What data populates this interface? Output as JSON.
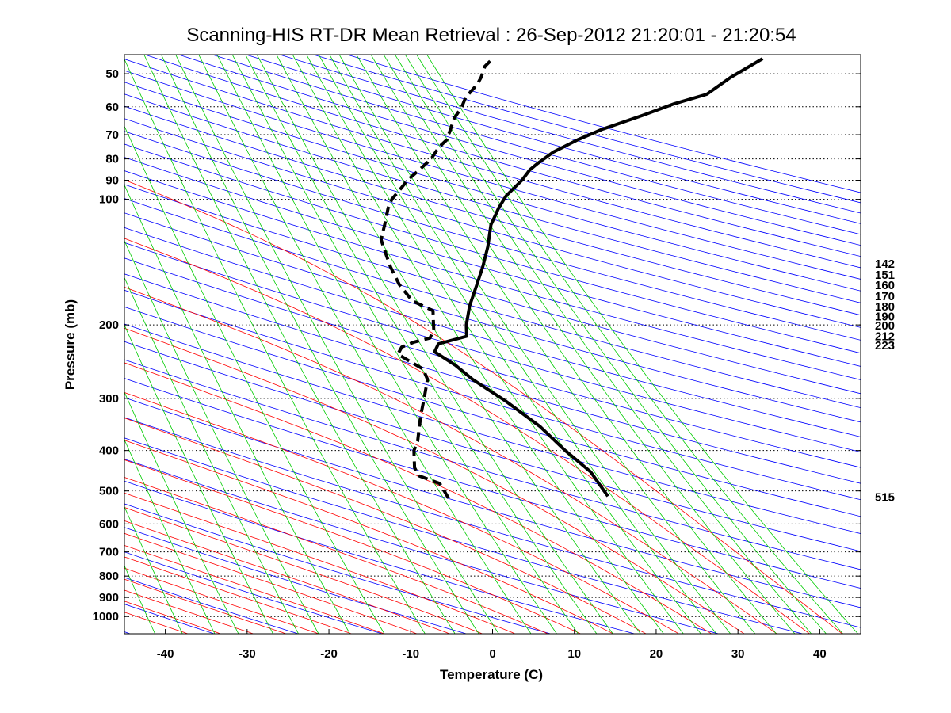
{
  "chart_data": {
    "type": "line",
    "title": "Scanning-HIS RT-DR Mean Retrieval : 26-Sep-2012 21:20:01 - 21:20:54",
    "xlabel": "Temperature (C)",
    "ylabel": "Pressure (mb)",
    "xlim": [
      -45,
      45
    ],
    "ylim": [
      1100,
      45
    ],
    "y_scale": "log",
    "x_ticks": [
      "-40",
      "-30",
      "-20",
      "-10",
      "0",
      "10",
      "20",
      "30",
      "40"
    ],
    "y_ticks": [
      "50",
      "60",
      "70",
      "80",
      "90",
      "100",
      "200",
      "300",
      "400",
      "500",
      "600",
      "700",
      "800",
      "900",
      "1000"
    ],
    "grid": "horizontal dotted lines at pressure ticks",
    "background_lines": {
      "dry_adiabats_color": "#0000ff",
      "moist_adiabats_color": "#ff0000",
      "mixing_ratio_color": "#00cc00"
    },
    "right_labels": [
      {
        "text": "142",
        "pressure": 142
      },
      {
        "text": "151",
        "pressure": 151
      },
      {
        "text": "160",
        "pressure": 160
      },
      {
        "text": "170",
        "pressure": 170
      },
      {
        "text": "180",
        "pressure": 180
      },
      {
        "text": "190",
        "pressure": 190
      },
      {
        "text": "200",
        "pressure": 200
      },
      {
        "text": "212",
        "pressure": 212
      },
      {
        "text": "223",
        "pressure": 223
      },
      {
        "text": "515",
        "pressure": 515
      }
    ],
    "series": [
      {
        "style": "solid",
        "color": "#000000",
        "points": [
          [
            12,
            515
          ],
          [
            10,
            450
          ],
          [
            7,
            400
          ],
          [
            4,
            350
          ],
          [
            0,
            305
          ],
          [
            -4,
            270
          ],
          [
            -6,
            250
          ],
          [
            -8.5,
            232
          ],
          [
            -8,
            222
          ],
          [
            -4.5,
            213
          ],
          [
            -4.5,
            200
          ],
          [
            -4,
            180
          ],
          [
            -3,
            160
          ],
          [
            -2.2,
            145
          ],
          [
            -1.5,
            130
          ],
          [
            -1,
            115
          ],
          [
            -0.5,
            110
          ],
          [
            0,
            105
          ],
          [
            1,
            98
          ],
          [
            3,
            90
          ],
          [
            4,
            85
          ],
          [
            5,
            82
          ],
          [
            7,
            77
          ],
          [
            10,
            72
          ],
          [
            13,
            68
          ],
          [
            18,
            63
          ],
          [
            22,
            59
          ],
          [
            26,
            56
          ],
          [
            29,
            51
          ],
          [
            33,
            46
          ]
        ]
      },
      {
        "style": "dashed",
        "color": "#000000",
        "points": [
          [
            -7.5,
            520
          ],
          [
            -8.5,
            480
          ],
          [
            -11,
            460
          ],
          [
            -11.5,
            440
          ],
          [
            -11.5,
            400
          ],
          [
            -11,
            380
          ],
          [
            -10.5,
            330
          ],
          [
            -10,
            300
          ],
          [
            -9.5,
            270
          ],
          [
            -10,
            255
          ],
          [
            -11.5,
            245
          ],
          [
            -13,
            235
          ],
          [
            -12.5,
            226
          ],
          [
            -11,
            220
          ],
          [
            -9,
            215
          ],
          [
            -8.5,
            205
          ],
          [
            -8.5,
            195
          ],
          [
            -8.5,
            185
          ],
          [
            -11,
            175
          ],
          [
            -12.5,
            160
          ],
          [
            -13.5,
            145
          ],
          [
            -14,
            135
          ],
          [
            -14.5,
            125
          ],
          [
            -14,
            115
          ],
          [
            -13.5,
            105
          ],
          [
            -13,
            100
          ],
          [
            -12,
            95
          ],
          [
            -11,
            90
          ],
          [
            -9.5,
            85
          ],
          [
            -8,
            80
          ],
          [
            -7,
            75
          ],
          [
            -6,
            72
          ],
          [
            -5.5,
            68
          ],
          [
            -5,
            64
          ],
          [
            -4,
            60
          ],
          [
            -3.5,
            57
          ],
          [
            -2,
            53
          ],
          [
            -1.5,
            51
          ],
          [
            -1,
            48
          ],
          [
            0,
            46
          ]
        ]
      }
    ]
  }
}
